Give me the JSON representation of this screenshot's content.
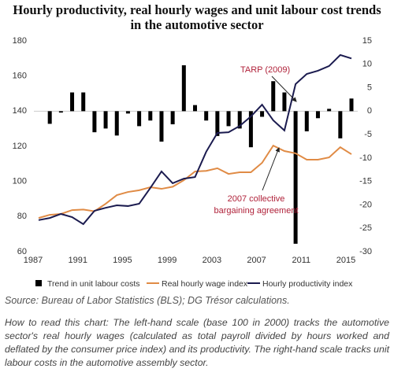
{
  "chart_data": {
    "type": "combo",
    "title": "Hourly productivity, real hourly wages and unit labour cost trends in the automotive sector",
    "x": [
      1987,
      1988,
      1989,
      1990,
      1991,
      1992,
      1993,
      1994,
      1995,
      1996,
      1997,
      1998,
      1999,
      2000,
      2001,
      2002,
      2003,
      2004,
      2005,
      2006,
      2007,
      2008,
      2009,
      2010,
      2011,
      2012,
      2013,
      2014,
      2015
    ],
    "xlim": [
      1987,
      2015
    ],
    "xticks": [
      1987,
      1991,
      1995,
      1999,
      2003,
      2007,
      2011,
      2015
    ],
    "ylim": [
      60,
      180
    ],
    "yticks": [
      60,
      80,
      100,
      120,
      140,
      160,
      180
    ],
    "y2lim": [
      -30,
      15
    ],
    "y2ticks": [
      -30,
      -25,
      -20,
      -15,
      -10,
      -5,
      0,
      5,
      10,
      15
    ],
    "series": [
      {
        "name": "Trend in unit labour costs",
        "type": "bar",
        "axis": "y2",
        "color": "#000000",
        "values": [
          null,
          -2.7,
          -0.3,
          4,
          4,
          -4.5,
          -3.7,
          -5.2,
          -0.5,
          -3.2,
          -2,
          -6.5,
          -2.8,
          9.8,
          1.3,
          -2,
          -5.3,
          -3.2,
          -3.7,
          -7.7,
          -1.2,
          6.4,
          4,
          -28.3,
          -4.3,
          -1.5,
          0.5,
          -5.8,
          2.7
        ]
      },
      {
        "name": "Real hourly wage index",
        "type": "line",
        "color": "#e08b45",
        "values": [
          79.2,
          81,
          81.5,
          83.7,
          84,
          83,
          87.3,
          92.2,
          94,
          95,
          96.7,
          95.8,
          97,
          100.7,
          105.7,
          106,
          107.5,
          104.3,
          105.2,
          105.2,
          110.6,
          120.4,
          117.3,
          116,
          112.4,
          112.4,
          113.7,
          119.5,
          115.5
        ]
      },
      {
        "name": "Hourly productivity index",
        "type": "line",
        "color": "#1b1b4f",
        "values": [
          78,
          79.2,
          81.5,
          79.7,
          75.7,
          83.3,
          85,
          86.4,
          86,
          87.3,
          96.3,
          105.7,
          99,
          101.6,
          102.5,
          116.9,
          127.6,
          128,
          131.6,
          137,
          143.7,
          134.8,
          129,
          155.4,
          161.2,
          163,
          165.7,
          172,
          170
        ]
      }
    ],
    "annotations": [
      [
        "TARP (2009)"
      ],
      [
        "2007 collective",
        "bargaining agreement"
      ]
    ],
    "source": "Source: Bureau of Labor Statistics (BLS); DG Trésor calculations.",
    "note": "How to read this chart: The left-hand scale (base 100 in 2000) tracks the automotive sector's real hourly wages (calculated as total payroll divided by hours worked and deflated by the consumer price index) and its productivity. The right-hand scale tracks unit labour costs in the automotive assembly sector."
  }
}
